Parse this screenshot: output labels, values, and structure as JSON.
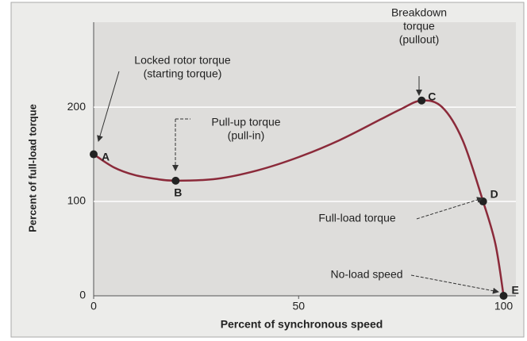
{
  "chart_data": {
    "type": "line",
    "xlabel": "Percent of synchronous speed",
    "ylabel": "Percent of full-load torque",
    "xlim": [
      0,
      103
    ],
    "ylim": [
      0,
      290
    ],
    "xticks": [
      0,
      50,
      100
    ],
    "yticks": [
      0,
      100,
      200
    ],
    "grid": true,
    "x": [
      0,
      5,
      10,
      15,
      20,
      30,
      40,
      50,
      60,
      70,
      75,
      80,
      85,
      90,
      95,
      98,
      100
    ],
    "series": [
      {
        "color": "#8b2a3a",
        "values": [
          150,
          136,
          128,
          124,
          122,
          124,
          133,
          147,
          165,
          187,
          198,
          207,
          200,
          165,
          100,
          55,
          0
        ]
      }
    ],
    "points": [
      {
        "label": "A",
        "x": 0,
        "y": 150
      },
      {
        "label": "B",
        "x": 20,
        "y": 122
      },
      {
        "label": "C",
        "x": 80,
        "y": 207
      },
      {
        "label": "D",
        "x": 95,
        "y": 100
      },
      {
        "label": "E",
        "x": 100,
        "y": 0
      }
    ],
    "annotations": [
      {
        "lines": [
          "Locked rotor torque",
          "(starting torque)"
        ]
      },
      {
        "lines": [
          "Pull-up torque",
          "(pull-in)"
        ]
      },
      {
        "lines": [
          "Breakdown",
          "torque",
          "(pullout)"
        ]
      },
      {
        "lines": [
          "Full-load torque"
        ]
      },
      {
        "lines": [
          "No-load speed"
        ]
      }
    ]
  }
}
